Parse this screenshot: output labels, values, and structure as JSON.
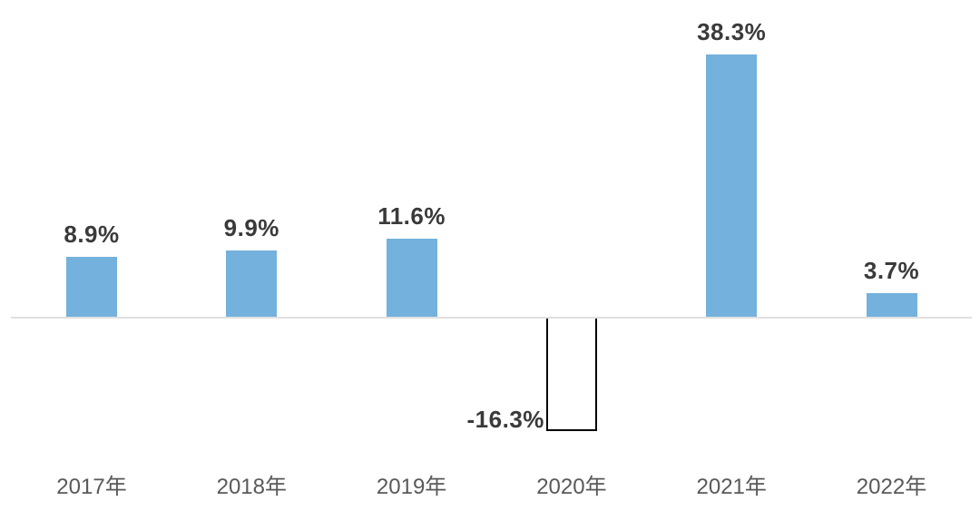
{
  "chart_data": {
    "type": "bar",
    "title": "",
    "xlabel": "",
    "ylabel": "",
    "unit": "%",
    "categories": [
      "2017年",
      "2018年",
      "2019年",
      "2020年",
      "2021年",
      "2022年"
    ],
    "values": [
      8.9,
      9.9,
      11.6,
      -16.3,
      38.3,
      3.7
    ],
    "value_labels": [
      "8.9%",
      "9.9%",
      "11.6%",
      "-16.3%",
      "38.3%",
      "3.7%"
    ],
    "ylim": [
      -22,
      44
    ],
    "grid": false,
    "legend_visible": false,
    "axis_ticks_visible": false,
    "bar_fills": [
      "#74B1DC",
      "#74B1DC",
      "#74B1DC",
      "#FFFFFF",
      "#74B1DC",
      "#74B1DC"
    ],
    "bar_strokes": [
      "none",
      "none",
      "none",
      "#000000",
      "none",
      "none"
    ],
    "colors": {
      "bar": "#74B1DC",
      "negative_bar_fill": "#FFFFFF",
      "negative_bar_stroke": "#000000",
      "axis_line": "#E0E0E0",
      "value_label_text": "#3A3A3A",
      "category_label_text": "#595959",
      "background": "#FFFFFF"
    }
  }
}
